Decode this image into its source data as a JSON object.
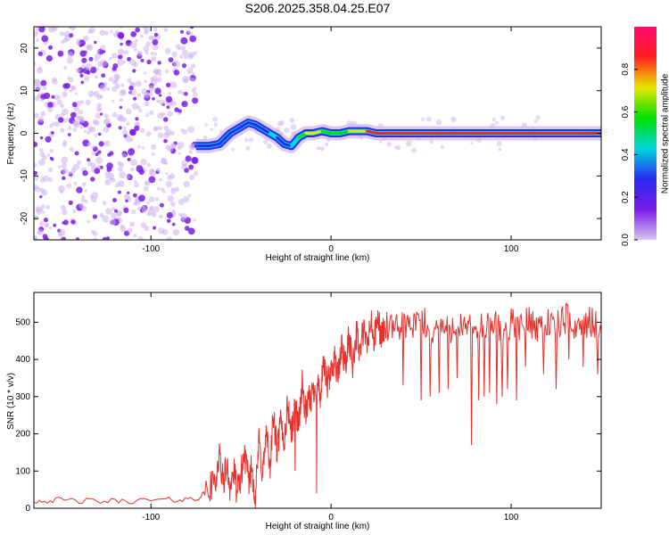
{
  "figure": {
    "title": "S206.2025.358.04.25.E07"
  },
  "chart_data": [
    {
      "type": "heatmap",
      "xlabel": "Height of straight line (km)",
      "ylabel": "Frequency (Hz)",
      "xlim": [
        -165,
        150
      ],
      "ylim": [
        -25,
        25
      ],
      "xticks": [
        -100,
        0,
        100
      ],
      "xtick_labels": [
        "-100",
        "0",
        "100"
      ],
      "yticks": [
        20,
        10,
        0,
        -10,
        -20
      ],
      "ytick_labels": [
        "20",
        "10",
        "0",
        "-10",
        "-20"
      ],
      "noise_region_x": [
        -165,
        -75
      ],
      "ridge": {
        "x": [
          -75,
          -68,
          -62,
          -56,
          -50,
          -46,
          -42,
          -38,
          -34,
          -30,
          -26,
          -22,
          -18,
          -14,
          -10,
          -5,
          0,
          5,
          10,
          15,
          20,
          25,
          40,
          60,
          80,
          100,
          120,
          150
        ],
        "freq": [
          -3,
          -3,
          -2.5,
          0,
          1.5,
          2.5,
          2,
          1,
          0,
          -1,
          -2.5,
          -3,
          -1,
          0,
          0,
          0.5,
          0,
          0,
          0.5,
          0.5,
          0.5,
          0,
          0,
          0,
          0,
          0,
          0,
          0
        ],
        "amp": [
          0.35,
          0.3,
          0.25,
          0.3,
          0.35,
          0.3,
          0.35,
          0.3,
          0.4,
          0.35,
          0.3,
          0.3,
          0.5,
          0.7,
          0.8,
          0.6,
          0.55,
          0.5,
          0.6,
          0.7,
          0.85,
          0.9,
          0.9,
          0.9,
          0.9,
          0.9,
          0.9,
          0.9
        ]
      },
      "colorbar": {
        "label": "Normalized spectral amplitude",
        "range": [
          0,
          1
        ],
        "ticks": [
          0.0,
          0.2,
          0.4,
          0.6,
          0.8
        ],
        "tick_labels": [
          "0.0",
          "0.2",
          "0.4",
          "0.6",
          "0.8"
        ],
        "colors": [
          "#d9c4f2",
          "#7a1de8",
          "#2a2af0",
          "#00d6e0",
          "#00e000",
          "#e8e800",
          "#ff2020",
          "#ff0a6e"
        ]
      }
    },
    {
      "type": "line",
      "xlabel": "Height of straight line (km)",
      "ylabel": "SNR (10 * v/v)",
      "xlim": [
        -165,
        150
      ],
      "ylim": [
        0,
        580
      ],
      "xticks": [
        -100,
        0,
        100
      ],
      "xtick_labels": [
        "-100",
        "0",
        "100"
      ],
      "yticks": [
        0,
        100,
        200,
        300,
        400,
        500
      ],
      "ytick_labels": [
        "0",
        "100",
        "200",
        "300",
        "400",
        "500"
      ],
      "series": [
        {
          "color": "#e8302c",
          "x": [
            -165,
            -150,
            -130,
            -110,
            -90,
            -75,
            -68,
            -64,
            -62,
            -60,
            -58,
            -56,
            -54,
            -52,
            -50,
            -48,
            -46,
            -44,
            -42,
            -40,
            -38,
            -36,
            -34,
            -32,
            -30,
            -28,
            -26,
            -24,
            -22,
            -20,
            -18,
            -16,
            -14,
            -12,
            -10,
            -8,
            -6,
            -4,
            -2,
            0,
            2,
            4,
            6,
            8,
            10,
            12,
            14,
            16,
            18,
            20,
            22,
            24,
            26,
            28,
            30,
            35,
            40,
            45,
            50,
            55,
            60,
            65,
            70,
            75,
            80,
            85,
            90,
            95,
            100,
            105,
            110,
            115,
            120,
            125,
            130,
            135,
            140,
            145,
            150
          ],
          "y": [
            20,
            22,
            18,
            20,
            22,
            25,
            45,
            80,
            140,
            70,
            110,
            60,
            100,
            40,
            90,
            150,
            70,
            110,
            30,
            180,
            90,
            200,
            110,
            250,
            150,
            230,
            180,
            280,
            200,
            270,
            230,
            330,
            250,
            290,
            310,
            350,
            300,
            380,
            330,
            360,
            410,
            350,
            440,
            380,
            460,
            390,
            470,
            420,
            480,
            430,
            500,
            450,
            510,
            460,
            490,
            470,
            500,
            480,
            510,
            470,
            490,
            480,
            500,
            470,
            490,
            480,
            500,
            470,
            495,
            480,
            505,
            490,
            500,
            485,
            510,
            490,
            500,
            495,
            480
          ],
          "dips_x": [
            -42,
            -20,
            -8,
            40,
            50,
            55,
            60,
            65,
            70,
            78,
            82,
            85,
            88,
            92,
            95,
            98,
            103,
            108,
            118,
            125,
            132,
            140,
            148
          ],
          "dips_y": [
            0,
            100,
            40,
            330,
            290,
            300,
            310,
            320,
            350,
            170,
            290,
            300,
            310,
            280,
            300,
            320,
            290,
            380,
            360,
            320,
            400,
            380,
            360
          ]
        }
      ]
    }
  ]
}
